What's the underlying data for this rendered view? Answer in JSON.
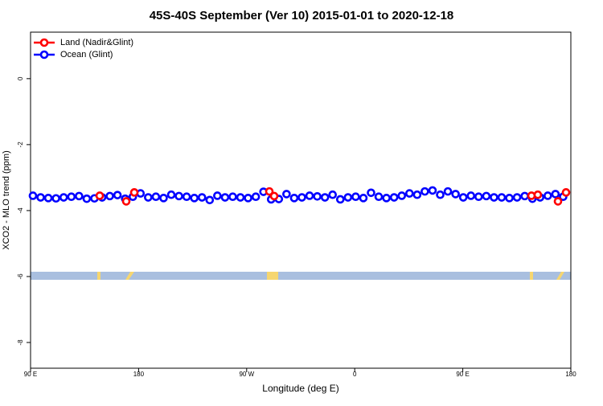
{
  "chart_data": {
    "type": "scatter",
    "title": "45S-40S September (Ver 10)   2015-01-01 to 2020-12-18",
    "x_label": "Longitude (deg E)",
    "y_label": "XCO2 - MLO trend (ppm)",
    "xlim": [
      90,
      540
    ],
    "xticks": [
      {
        "value": 90,
        "label": "90 E"
      },
      {
        "value": 180,
        "label": "180"
      },
      {
        "value": 270,
        "label": "90 W"
      },
      {
        "value": 360,
        "label": "0"
      },
      {
        "value": 450,
        "label": "90 E"
      },
      {
        "value": 540,
        "label": "180"
      }
    ],
    "ylim": [
      -8.78,
      1.41
    ],
    "yticks": [
      0,
      -2,
      -4,
      -6,
      -8
    ],
    "legend": "top-left",
    "series": [
      {
        "name": "Ocean (Glint)",
        "color": "#0000ff",
        "x": [
          92,
          98.4,
          104.8,
          111.2,
          117.6,
          124,
          130.4,
          136.8,
          143.2,
          149.6,
          156,
          162.4,
          168.8,
          175.2,
          181.6,
          188,
          194.4,
          200.8,
          207.2,
          213.6,
          220,
          226.4,
          232.8,
          239.2,
          245.6,
          252,
          258.4,
          264.8,
          271.2,
          277.6,
          284,
          290.4,
          296.8,
          303.2,
          309.6,
          316,
          322.4,
          328.8,
          335.2,
          341.6,
          348,
          354.4,
          360.8,
          367.2,
          373.6,
          380,
          386.4,
          392.8,
          399.2,
          405.6,
          412,
          418.4,
          424.8,
          431.2,
          437.6,
          444,
          450.4,
          456.8,
          463.2,
          469.6,
          476,
          482.4,
          488.8,
          495.2,
          501.6,
          508,
          514.4,
          520.8,
          527.2,
          533.6
        ],
        "values": [
          -3.55,
          -3.6,
          -3.62,
          -3.63,
          -3.6,
          -3.58,
          -3.56,
          -3.64,
          -3.63,
          -3.6,
          -3.56,
          -3.53,
          -3.64,
          -3.58,
          -3.48,
          -3.6,
          -3.58,
          -3.62,
          -3.52,
          -3.56,
          -3.58,
          -3.62,
          -3.6,
          -3.68,
          -3.55,
          -3.6,
          -3.58,
          -3.6,
          -3.62,
          -3.58,
          -3.43,
          -3.66,
          -3.65,
          -3.5,
          -3.62,
          -3.6,
          -3.55,
          -3.57,
          -3.6,
          -3.52,
          -3.66,
          -3.6,
          -3.58,
          -3.62,
          -3.46,
          -3.58,
          -3.62,
          -3.6,
          -3.55,
          -3.48,
          -3.52,
          -3.42,
          -3.39,
          -3.52,
          -3.42,
          -3.5,
          -3.6,
          -3.55,
          -3.58,
          -3.56,
          -3.6,
          -3.6,
          -3.62,
          -3.6,
          -3.56,
          -3.64,
          -3.6,
          -3.55,
          -3.5,
          -3.58
        ]
      },
      {
        "name": "Land (Nadir&Glint)",
        "color": "#ff0000",
        "x": [
          147.6,
          169.7,
          176.4,
          288.9,
          292.9,
          507.2,
          512.5,
          529.3,
          536
        ],
        "values": [
          -3.55,
          -3.72,
          -3.45,
          -3.42,
          -3.56,
          -3.55,
          -3.52,
          -3.72,
          -3.45
        ]
      }
    ]
  }
}
